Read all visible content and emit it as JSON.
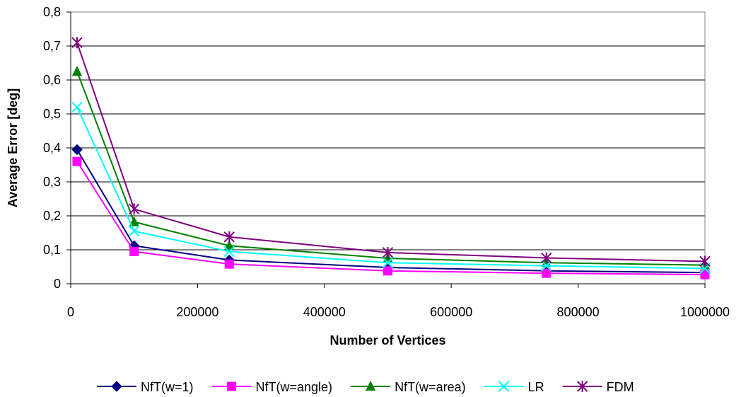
{
  "chart_data": {
    "type": "line",
    "title": "",
    "xlabel": "Number of Vertices",
    "ylabel": "Average Error [deg]",
    "xlim": [
      0,
      1000000
    ],
    "ylim": [
      0,
      0.8
    ],
    "x_ticks": [
      "0",
      "200000",
      "400000",
      "600000",
      "800000",
      "1000000"
    ],
    "y_ticks": [
      "0",
      "0,1",
      "0,2",
      "0,3",
      "0,4",
      "0,5",
      "0,6",
      "0,7",
      "0,8"
    ],
    "grid": "horizontal",
    "legend_position": "bottom",
    "x": [
      10000,
      100000,
      250000,
      500000,
      750000,
      1000000
    ],
    "series": [
      {
        "name": "NfT(w=1)",
        "color": "#000080",
        "marker": "diamond",
        "values": [
          0.395,
          0.112,
          0.07,
          0.048,
          0.038,
          0.033
        ]
      },
      {
        "name": "NfT(w=angle)",
        "color": "#FF00FF",
        "marker": "square",
        "values": [
          0.36,
          0.095,
          0.058,
          0.038,
          0.031,
          0.027
        ]
      },
      {
        "name": "NfT(w=area)",
        "color": "#008000",
        "marker": "triangle",
        "values": [
          0.625,
          0.182,
          0.112,
          0.075,
          0.062,
          0.055
        ]
      },
      {
        "name": "LR",
        "color": "#00FFFF",
        "marker": "x",
        "values": [
          0.52,
          0.155,
          0.095,
          0.062,
          0.053,
          0.045
        ]
      },
      {
        "name": "FDM",
        "color": "#800080",
        "marker": "star",
        "values": [
          0.71,
          0.22,
          0.138,
          0.092,
          0.076,
          0.066
        ]
      }
    ]
  }
}
